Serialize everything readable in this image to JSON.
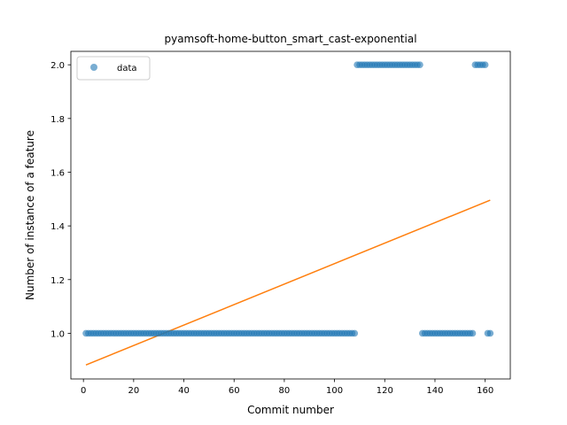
{
  "chart_data": {
    "type": "scatter",
    "title": "pyamsoft-home-button_smart_cast-exponential",
    "xlabel": "Commit number",
    "ylabel": "Number of instance of a feature",
    "xlim": [
      -5,
      170
    ],
    "ylim": [
      0.83,
      2.05
    ],
    "xticks": [
      0,
      20,
      40,
      60,
      80,
      100,
      120,
      140,
      160
    ],
    "yticks": [
      1.0,
      1.2,
      1.4,
      1.6,
      1.8,
      2.0
    ],
    "ytick_labels": [
      "1.0",
      "1.2",
      "1.4",
      "1.6",
      "1.8",
      "2.0"
    ],
    "grid": false,
    "legend": {
      "position": "top-left",
      "entries": [
        "data"
      ]
    },
    "series": [
      {
        "name": "data",
        "kind": "scatter",
        "color": "#1f77b4",
        "segments": [
          {
            "x_from": 1,
            "x_to": 108,
            "y": 1.0
          },
          {
            "x_from": 109,
            "x_to": 134,
            "y": 2.0
          },
          {
            "x_from": 135,
            "x_to": 155,
            "y": 1.0
          },
          {
            "x_from": 156,
            "x_to": 160,
            "y": 2.0
          },
          {
            "x_from": 161,
            "x_to": 162,
            "y": 1.0
          }
        ]
      },
      {
        "kind": "line",
        "color": "#ff7f0e",
        "x": [
          1,
          162
        ],
        "y": [
          0.882,
          1.496
        ]
      }
    ]
  }
}
